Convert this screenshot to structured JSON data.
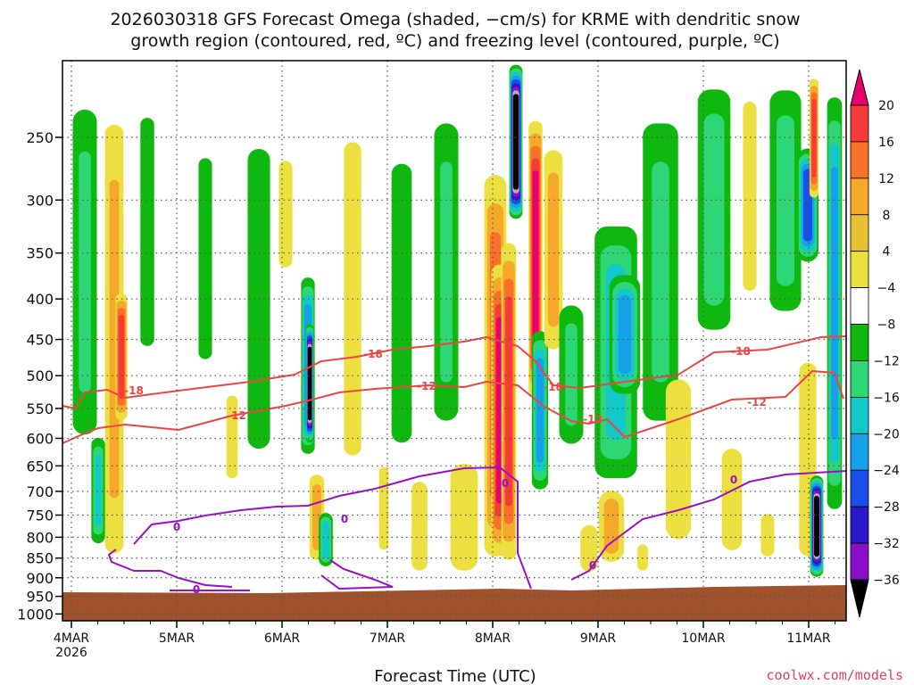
{
  "chart_data": {
    "type": "heatmap",
    "title": [
      "2026030318 GFS Forecast Omega (shaded, −cm/s) for KRME with dendritic snow",
      "growth region (contoured, red, ºC) and freezing level (contoured, purple, ºC)"
    ],
    "xlabel": "Forecast Time (UTC)",
    "ylabel": "",
    "credit": "coolwx.com/models",
    "x_ticks": [
      "4MAR",
      "5MAR",
      "6MAR",
      "7MAR",
      "8MAR",
      "9MAR",
      "10MAR",
      "11MAR"
    ],
    "x_year_label": "2026",
    "y_ticks": [
      250,
      300,
      350,
      400,
      450,
      500,
      550,
      600,
      650,
      700,
      750,
      800,
      850,
      900,
      950,
      1000
    ],
    "ylim": [
      1000,
      200
    ],
    "y_scale": "log-pressure",
    "grid": true,
    "colorbar": {
      "labels": [
        "20",
        "16",
        "12",
        "8",
        "4",
        "−4",
        "−8",
        "−12",
        "−16",
        "−20",
        "−24",
        "−28",
        "−32",
        "−36"
      ],
      "levels": [
        20,
        16,
        12,
        8,
        4,
        -4,
        -8,
        -12,
        -16,
        -20,
        -24,
        -28,
        -32,
        -36
      ],
      "colors": [
        "#e8006e",
        "#f53a3a",
        "#f9702a",
        "#f5a82a",
        "#e8c030",
        "#ece040",
        "#ffffff",
        "#0fb80f",
        "#2ed675",
        "#12c8c8",
        "#16a0e8",
        "#1a4ee8",
        "#2818c8",
        "#8a0fc8",
        "#b0b0b0",
        "#000000"
      ]
    },
    "surface_color": "#a0522d",
    "contours": [
      {
        "value": "-18",
        "color": "#ee4444"
      },
      {
        "value": "-12",
        "color": "#ee4444"
      },
      {
        "value": "0",
        "color": "#9a10c8"
      }
    ]
  }
}
